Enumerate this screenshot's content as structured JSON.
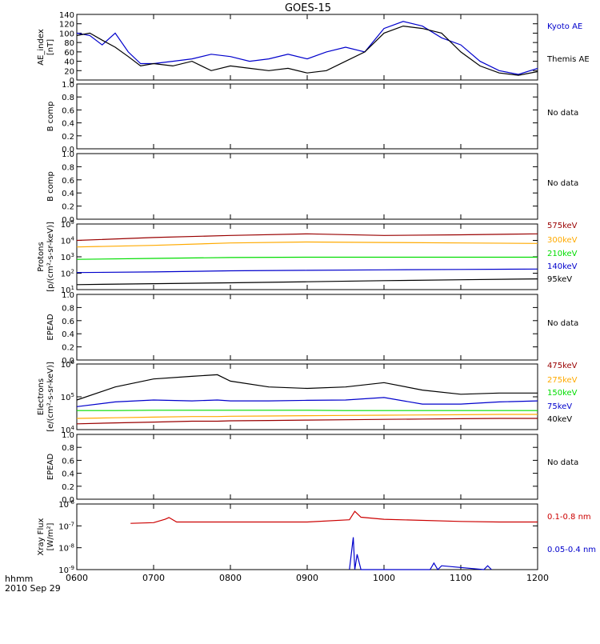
{
  "title": "GOES-15",
  "footer": {
    "time_label": "hhmm",
    "date_label": "2010 Sep 29"
  },
  "x_axis": {
    "ticks": [
      "0600",
      "0700",
      "0800",
      "0900",
      "1000",
      "1100",
      "1200"
    ]
  },
  "colors": {
    "black": "#000000",
    "blue": "#0000cc",
    "red": "#cc0000",
    "orange": "#ffaa00",
    "green": "#00dd00",
    "darkred": "#990000"
  },
  "chart_data": [
    {
      "type": "line",
      "ylabel": "AE_index\n[nT]",
      "ylim": [
        0,
        140
      ],
      "yticks": [
        "0",
        "20",
        "40",
        "60",
        "80",
        "100",
        "120",
        "140"
      ],
      "x_hours": [
        6.0,
        6.17,
        6.33,
        6.5,
        6.67,
        6.83,
        7.0,
        7.25,
        7.5,
        7.75,
        8.0,
        8.25,
        8.5,
        8.75,
        9.0,
        9.25,
        9.5,
        9.75,
        10.0,
        10.25,
        10.5,
        10.75,
        11.0,
        11.25,
        11.5,
        11.75,
        12.0
      ],
      "series": [
        {
          "name": "Kyoto AE",
          "color": "#0000cc",
          "values": [
            100,
            95,
            75,
            100,
            60,
            35,
            35,
            40,
            45,
            55,
            50,
            40,
            45,
            55,
            45,
            60,
            70,
            60,
            110,
            125,
            115,
            90,
            75,
            40,
            20,
            12,
            25
          ]
        },
        {
          "name": "Themis AE",
          "color": "#000000",
          "values": [
            95,
            100,
            85,
            70,
            50,
            30,
            35,
            30,
            40,
            20,
            30,
            25,
            20,
            25,
            15,
            20,
            40,
            60,
            100,
            115,
            110,
            100,
            60,
            30,
            15,
            10,
            18
          ]
        }
      ]
    },
    {
      "type": "line",
      "ylabel": "B comp",
      "ylim": [
        0,
        1
      ],
      "yticks": [
        "0.0",
        "0.2",
        "0.4",
        "0.6",
        "0.8",
        "1.0"
      ],
      "series": [],
      "note": "No data"
    },
    {
      "type": "line",
      "ylabel": "B comp",
      "ylim": [
        0,
        1
      ],
      "yticks": [
        "0.0",
        "0.2",
        "0.4",
        "0.6",
        "0.8",
        "1.0"
      ],
      "series": [],
      "note": "No data"
    },
    {
      "type": "line",
      "ylabel": "Protons\n[p/(cm²-s-sr-keV)]",
      "log": true,
      "ylim_exp": [
        1,
        5
      ],
      "ytick_exps": [
        1,
        2,
        3,
        4,
        5
      ],
      "x_hours": [
        6.0,
        7.0,
        8.0,
        9.0,
        10.0,
        11.0,
        12.0
      ],
      "series": [
        {
          "name": "575keV",
          "color": "#990000",
          "values": [
            10000.0,
            15000.0,
            20000.0,
            25000.0,
            20000.0,
            22000.0,
            25000.0
          ]
        },
        {
          "name": "300keV",
          "color": "#ffaa00",
          "values": [
            4000,
            5000,
            7000,
            8000,
            7500,
            7000,
            6500
          ]
        },
        {
          "name": "210keV",
          "color": "#00dd00",
          "values": [
            700,
            800,
            900,
            950,
            950,
            950,
            950
          ]
        },
        {
          "name": "140keV",
          "color": "#0000cc",
          "values": [
            110,
            120,
            140,
            150,
            160,
            170,
            180
          ]
        },
        {
          "name": "95keV",
          "color": "#000000",
          "values": [
            20,
            23,
            26,
            30,
            35,
            40,
            45
          ]
        }
      ]
    },
    {
      "type": "line",
      "ylabel": "EPEAD",
      "ylim": [
        0,
        1
      ],
      "yticks": [
        "0.0",
        "0.2",
        "0.4",
        "0.6",
        "0.8",
        "1.0"
      ],
      "series": [],
      "note": "No data"
    },
    {
      "type": "line",
      "ylabel": "Electrons\n[e/(cm²-s-sr-keV)]",
      "log": true,
      "ylim_exp": [
        4,
        6
      ],
      "ytick_exps": [
        4,
        5,
        6
      ],
      "x_hours": [
        6.0,
        6.5,
        7.0,
        7.5,
        7.83,
        8.0,
        8.5,
        9.0,
        9.5,
        10.0,
        10.5,
        11.0,
        11.5,
        12.0
      ],
      "series": [
        {
          "name": "475keV",
          "color": "#990000",
          "values": [
            15000,
            16000,
            17000,
            18000,
            18000,
            18500,
            19000,
            19500,
            20000,
            20500,
            21000,
            21500,
            22000,
            22000
          ]
        },
        {
          "name": "275keV",
          "color": "#ffaa00",
          "values": [
            22000,
            23000,
            24000,
            25000,
            25000,
            25500,
            26000,
            26500,
            27000,
            27500,
            28000,
            28500,
            29000,
            29000
          ]
        },
        {
          "name": "150keV",
          "color": "#00dd00",
          "values": [
            38000,
            38000,
            39000,
            39000,
            39000,
            39000,
            39000,
            39000,
            38000,
            38000,
            38000,
            38000,
            38000,
            38000
          ]
        },
        {
          "name": "75keV",
          "color": "#0000cc",
          "values": [
            50000,
            70000,
            80000,
            75000,
            80000,
            75000,
            75000,
            78000,
            80000,
            95000,
            60000,
            60000,
            70000,
            75000
          ]
        },
        {
          "name": "40keV",
          "color": "#000000",
          "values": [
            80000,
            200000,
            350000,
            420000,
            470000,
            300000,
            200000,
            180000,
            200000,
            270000,
            160000,
            120000,
            130000,
            130000
          ]
        }
      ]
    },
    {
      "type": "line",
      "ylabel": "EPEAD",
      "ylim": [
        0,
        1
      ],
      "yticks": [
        "0.0",
        "0.2",
        "0.4",
        "0.6",
        "0.8",
        "1.0"
      ],
      "series": [],
      "note": "No data"
    },
    {
      "type": "line",
      "ylabel": "Xray Flux\n[W/m²]",
      "log": true,
      "ylim_exp": [
        -9,
        -6
      ],
      "ytick_exps": [
        -9,
        -8,
        -7,
        -6
      ],
      "series": [
        {
          "name": "0.1-0.8 nm",
          "color": "#cc0000",
          "x_hours": [
            6.7,
            7.0,
            7.15,
            7.2,
            7.3,
            8.0,
            9.0,
            9.55,
            9.62,
            9.7,
            10.0,
            11.0,
            11.5,
            12.0
          ],
          "values": [
            1.3e-07,
            1.4e-07,
            2e-07,
            2.4e-07,
            1.5e-07,
            1.5e-07,
            1.5e-07,
            1.9e-07,
            4.6e-07,
            2.5e-07,
            2e-07,
            1.6e-07,
            1.5e-07,
            1.5e-07
          ]
        },
        {
          "name": "0.05-0.4 nm",
          "color": "#0000cc",
          "x_hours": [
            9.55,
            9.6,
            9.62,
            9.65,
            9.7,
            9.75,
            10.6,
            10.65,
            10.7,
            10.75,
            11.3,
            11.35,
            11.4
          ],
          "values": [
            1e-09,
            3e-08,
            1e-09,
            5e-09,
            1e-09,
            1e-09,
            1e-09,
            2e-09,
            1e-09,
            1.5e-09,
            1e-09,
            1.5e-09,
            1e-09
          ]
        }
      ]
    }
  ]
}
